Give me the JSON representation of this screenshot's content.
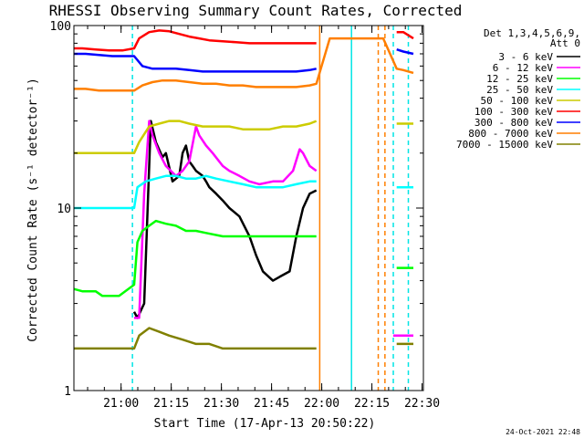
{
  "chart_data": {
    "type": "line",
    "title": "RHESSI Observing Summary Count Rates, Corrected",
    "xlabel": "Start Time (17-Apr-13 20:50:22)",
    "ylabel": "Corrected Count Rate (s⁻¹ detector⁻¹)",
    "y_scale": "log",
    "ylim": [
      1,
      100
    ],
    "xlim_minutes_after_start": [
      -4.5,
      100
    ],
    "y_ticks": [
      {
        "value": 1,
        "label": "1"
      },
      {
        "value": 10,
        "label": "10"
      },
      {
        "value": 100,
        "label": "100"
      }
    ],
    "x_ticks": [
      {
        "minute": 9.6,
        "label": "21:00"
      },
      {
        "minute": 24.6,
        "label": "21:15"
      },
      {
        "minute": 39.6,
        "label": "21:30"
      },
      {
        "minute": 54.6,
        "label": "21:45"
      },
      {
        "minute": 69.6,
        "label": "22:00"
      },
      {
        "minute": 84.6,
        "label": "22:15"
      },
      {
        "minute": 99.6,
        "label": "22:30"
      }
    ],
    "legend_header": [
      "Det 1,3,4,5,6,9,",
      "Att 0"
    ],
    "legend_position": "top-right",
    "attenuator_vlines": [
      {
        "minute": 69.0,
        "color": "#ff7f00",
        "style": "solid"
      },
      {
        "minute": 78.5,
        "color": "#00e5e5",
        "style": "solid"
      },
      {
        "minute": 86.5,
        "color": "#ff7f00",
        "style": "dashed"
      },
      {
        "minute": 88.5,
        "color": "#ff7f00",
        "style": "dashed"
      },
      {
        "minute": 91.0,
        "color": "#00e5e5",
        "style": "dashed"
      },
      {
        "minute": 95.5,
        "color": "#00e5e5",
        "style": "dashed"
      },
      {
        "minute": 13.0,
        "color": "#00e5e5",
        "style": "dashed"
      }
    ],
    "series": [
      {
        "name": "3 - 6 keV",
        "color": "#000000",
        "points": [
          [
            13.5,
            2.7
          ],
          [
            14.5,
            2.5
          ],
          [
            16.5,
            3.0
          ],
          [
            18.5,
            30
          ],
          [
            20,
            23
          ],
          [
            22,
            19
          ],
          [
            23,
            20
          ],
          [
            25,
            14
          ],
          [
            27,
            15
          ],
          [
            28,
            20
          ],
          [
            29,
            22
          ],
          [
            30,
            18
          ],
          [
            31,
            17
          ],
          [
            32,
            16
          ],
          [
            34,
            15
          ],
          [
            35,
            14
          ],
          [
            36,
            13
          ],
          [
            38,
            12
          ],
          [
            40,
            11
          ],
          [
            42,
            10
          ],
          [
            45,
            9
          ],
          [
            48,
            7
          ],
          [
            50,
            5.5
          ],
          [
            52,
            4.5
          ],
          [
            55,
            4
          ],
          [
            57,
            4.2
          ],
          [
            60,
            4.5
          ],
          [
            62,
            7
          ],
          [
            64,
            10
          ],
          [
            66,
            12
          ],
          [
            68,
            12.5
          ]
        ]
      },
      {
        "name": "6 - 12 keV",
        "color": "#ff00ff",
        "points": [
          [
            13.5,
            2.5
          ],
          [
            15,
            2.5
          ],
          [
            16.5,
            12
          ],
          [
            18,
            30
          ],
          [
            19,
            25
          ],
          [
            21,
            20
          ],
          [
            23,
            17
          ],
          [
            26,
            15
          ],
          [
            28,
            16
          ],
          [
            30,
            18
          ],
          [
            32,
            28
          ],
          [
            33,
            25
          ],
          [
            35,
            22
          ],
          [
            37,
            20
          ],
          [
            40,
            17
          ],
          [
            42,
            16
          ],
          [
            45,
            15
          ],
          [
            48,
            14
          ],
          [
            51,
            13.5
          ],
          [
            55,
            14
          ],
          [
            58,
            14
          ],
          [
            61,
            16
          ],
          [
            63,
            21
          ],
          [
            64,
            20
          ],
          [
            66,
            17
          ],
          [
            68,
            16
          ],
          [
            91,
            2
          ],
          [
            94,
            2
          ],
          [
            97,
            2
          ]
        ]
      },
      {
        "name": "12 - 25 keV",
        "color": "#00ff00",
        "points": [
          [
            -4.5,
            3.6
          ],
          [
            -2,
            3.5
          ],
          [
            0,
            3.5
          ],
          [
            2,
            3.5
          ],
          [
            4,
            3.3
          ],
          [
            7,
            3.3
          ],
          [
            9,
            3.3
          ],
          [
            13.5,
            3.8
          ],
          [
            14.5,
            6.5
          ],
          [
            16,
            7.5
          ],
          [
            18,
            8
          ],
          [
            20,
            8.5
          ],
          [
            23,
            8.2
          ],
          [
            26,
            8
          ],
          [
            29,
            7.5
          ],
          [
            32,
            7.5
          ],
          [
            35,
            7.3
          ],
          [
            40,
            7
          ],
          [
            45,
            7
          ],
          [
            50,
            7
          ],
          [
            55,
            7
          ],
          [
            60,
            7
          ],
          [
            65,
            7
          ],
          [
            68,
            7
          ],
          [
            92,
            4.7
          ],
          [
            94,
            4.7
          ],
          [
            97,
            4.7
          ]
        ]
      },
      {
        "name": "25 - 50 keV",
        "color": "#00ffff",
        "points": [
          [
            -4.5,
            10
          ],
          [
            -1,
            10
          ],
          [
            3,
            10
          ],
          [
            6,
            10
          ],
          [
            10,
            10
          ],
          [
            13.5,
            10
          ],
          [
            14.5,
            13
          ],
          [
            17,
            14
          ],
          [
            20,
            14.5
          ],
          [
            23,
            15
          ],
          [
            26,
            15
          ],
          [
            29,
            14.5
          ],
          [
            32,
            14.5
          ],
          [
            35,
            15
          ],
          [
            38,
            14.5
          ],
          [
            42,
            14
          ],
          [
            46,
            13.5
          ],
          [
            50,
            13
          ],
          [
            54,
            13
          ],
          [
            58,
            13
          ],
          [
            62,
            13.5
          ],
          [
            66,
            14
          ],
          [
            68,
            14
          ],
          [
            92,
            13
          ],
          [
            94,
            13
          ],
          [
            97,
            13
          ]
        ]
      },
      {
        "name": "50 - 100 keV",
        "color": "#cccc00",
        "points": [
          [
            -4.5,
            20
          ],
          [
            0,
            20
          ],
          [
            4,
            20
          ],
          [
            8,
            20
          ],
          [
            11,
            20
          ],
          [
            13.5,
            20
          ],
          [
            15,
            23
          ],
          [
            18,
            28
          ],
          [
            21,
            29
          ],
          [
            24,
            30
          ],
          [
            27,
            30
          ],
          [
            30,
            29
          ],
          [
            34,
            28
          ],
          [
            38,
            28
          ],
          [
            42,
            28
          ],
          [
            46,
            27
          ],
          [
            50,
            27
          ],
          [
            54,
            27
          ],
          [
            58,
            28
          ],
          [
            62,
            28
          ],
          [
            66,
            29
          ],
          [
            68,
            30
          ],
          [
            92,
            29
          ],
          [
            94,
            29
          ],
          [
            97,
            29
          ]
        ]
      },
      {
        "name": "100 - 300 keV",
        "color": "#ff0000",
        "points": [
          [
            -4.5,
            75
          ],
          [
            -2,
            75
          ],
          [
            2,
            74
          ],
          [
            6,
            73
          ],
          [
            10,
            73
          ],
          [
            13.5,
            75
          ],
          [
            15,
            85
          ],
          [
            18,
            92
          ],
          [
            21,
            94
          ],
          [
            24,
            93
          ],
          [
            27,
            90
          ],
          [
            30,
            87
          ],
          [
            33,
            85
          ],
          [
            36,
            83
          ],
          [
            40,
            82
          ],
          [
            44,
            81
          ],
          [
            48,
            80
          ],
          [
            52,
            80
          ],
          [
            56,
            80
          ],
          [
            60,
            80
          ],
          [
            64,
            80
          ],
          [
            68,
            80
          ],
          [
            92,
            92
          ],
          [
            94,
            92
          ],
          [
            97,
            85
          ]
        ]
      },
      {
        "name": "300 - 800 keV",
        "color": "#0000ff",
        "points": [
          [
            -4.5,
            70
          ],
          [
            -1,
            70
          ],
          [
            3,
            69
          ],
          [
            7,
            68
          ],
          [
            11,
            68
          ],
          [
            13.5,
            68
          ],
          [
            16,
            60
          ],
          [
            19,
            58
          ],
          [
            22,
            58
          ],
          [
            26,
            58
          ],
          [
            30,
            57
          ],
          [
            34,
            56
          ],
          [
            38,
            56
          ],
          [
            42,
            56
          ],
          [
            46,
            56
          ],
          [
            50,
            56
          ],
          [
            54,
            56
          ],
          [
            58,
            56
          ],
          [
            62,
            56
          ],
          [
            66,
            57
          ],
          [
            68,
            58
          ],
          [
            92,
            74
          ],
          [
            94,
            72
          ],
          [
            97,
            70
          ]
        ]
      },
      {
        "name": "800 - 7000 keV",
        "color": "#ff7f00",
        "points": [
          [
            -4.5,
            45
          ],
          [
            -1,
            45
          ],
          [
            3,
            44
          ],
          [
            7,
            44
          ],
          [
            11,
            44
          ],
          [
            13.5,
            44
          ],
          [
            16,
            47
          ],
          [
            19,
            49
          ],
          [
            22,
            50
          ],
          [
            26,
            50
          ],
          [
            30,
            49
          ],
          [
            34,
            48
          ],
          [
            38,
            48
          ],
          [
            42,
            47
          ],
          [
            46,
            47
          ],
          [
            50,
            46
          ],
          [
            54,
            46
          ],
          [
            58,
            46
          ],
          [
            62,
            46
          ],
          [
            66,
            47
          ],
          [
            68,
            48
          ],
          [
            72,
            85
          ],
          [
            76,
            85
          ],
          [
            80,
            85
          ],
          [
            84,
            85
          ],
          [
            88,
            85
          ],
          [
            92,
            58
          ],
          [
            94,
            57
          ],
          [
            97,
            55
          ]
        ]
      },
      {
        "name": "7000 - 15000 keV",
        "color": "#808000",
        "points": [
          [
            -4.5,
            1.7
          ],
          [
            0,
            1.7
          ],
          [
            4,
            1.7
          ],
          [
            8,
            1.7
          ],
          [
            11,
            1.7
          ],
          [
            13.5,
            1.7
          ],
          [
            15,
            2
          ],
          [
            18,
            2.2
          ],
          [
            21,
            2.1
          ],
          [
            24,
            2
          ],
          [
            28,
            1.9
          ],
          [
            32,
            1.8
          ],
          [
            36,
            1.8
          ],
          [
            40,
            1.7
          ],
          [
            44,
            1.7
          ],
          [
            48,
            1.7
          ],
          [
            52,
            1.7
          ],
          [
            56,
            1.7
          ],
          [
            60,
            1.7
          ],
          [
            64,
            1.7
          ],
          [
            68,
            1.7
          ],
          [
            92,
            1.8
          ],
          [
            94,
            1.8
          ],
          [
            97,
            1.8
          ]
        ]
      }
    ]
  },
  "timestamp": "24-Oct-2021 22:48"
}
